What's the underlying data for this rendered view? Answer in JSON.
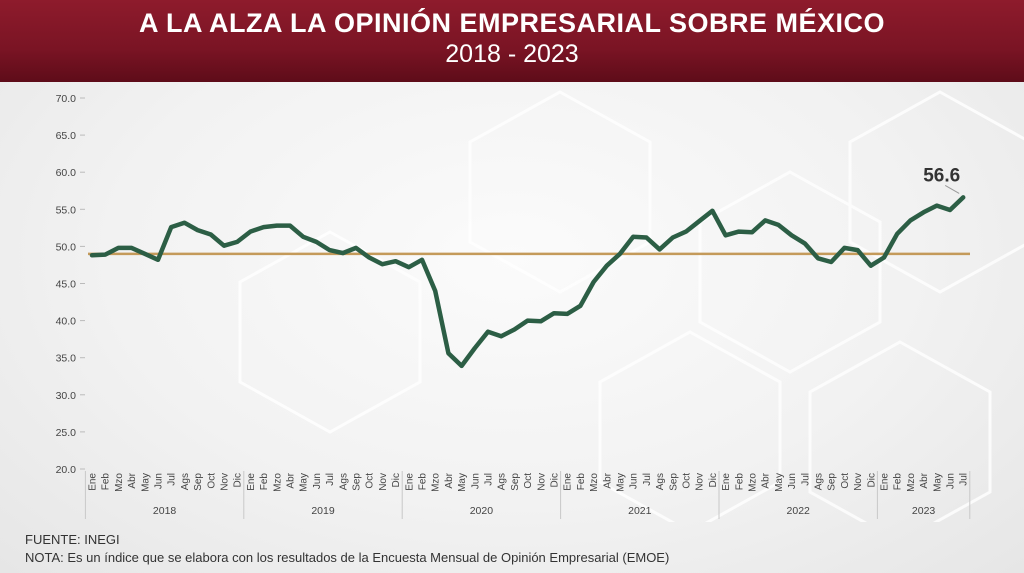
{
  "header": {
    "title": "A LA ALZA LA OPINIÓN EMPRESARIAL SOBRE MÉXICO",
    "subtitle": "2018 - 2023"
  },
  "footer": {
    "source": "FUENTE: INEGI",
    "note": "NOTA: Es un índice que se elabora con los resultados de la Encuesta Mensual de Opinión Empresarial (EMOE)"
  },
  "colors": {
    "line": "#2c5e45",
    "reference": "#c49a5a",
    "header": "#7a1424"
  },
  "chart_data": {
    "type": "line",
    "title": "",
    "ylim": [
      20,
      70
    ],
    "yticks": [
      "20.0",
      "25.0",
      "30.0",
      "35.0",
      "40.0",
      "45.0",
      "50.0",
      "55.0",
      "60.0",
      "65.0",
      "70.0"
    ],
    "month_labels": [
      "Ene",
      "Feb",
      "Mzo",
      "Abr",
      "May",
      "Jun",
      "Jul",
      "Ags",
      "Sep",
      "Oct",
      "Nov",
      "Dic"
    ],
    "last_year_month_labels": [
      "Ene",
      "Feb",
      "Mzo",
      "Abr",
      "May",
      "Jun",
      "Jul"
    ],
    "years": [
      "2018",
      "2019",
      "2020",
      "2021",
      "2022",
      "2023"
    ],
    "reference_value": 49,
    "callout": "56.6",
    "series": [
      {
        "values": [
          48.8,
          48.9,
          49.8,
          49.8,
          49.0,
          48.2,
          52.6,
          53.2,
          52.2,
          51.6,
          50.1,
          50.6,
          52.0,
          52.6,
          52.8,
          52.8,
          51.3,
          50.6,
          49.5,
          49.1,
          49.8,
          48.5,
          47.6,
          48.0,
          47.2,
          48.2,
          44.0,
          35.6,
          33.9,
          36.3,
          38.5,
          37.9,
          38.8,
          40.0,
          39.9,
          41.0,
          40.9,
          42.0,
          45.2,
          47.4,
          49.0,
          51.3,
          51.2,
          49.6,
          51.2,
          52.0,
          53.4,
          54.8,
          51.5,
          52.0,
          51.9,
          53.5,
          52.9,
          51.5,
          50.4,
          48.4,
          47.9,
          49.8,
          49.5,
          47.4,
          48.5,
          51.7,
          53.5,
          54.6,
          55.5,
          54.9,
          56.6
        ]
      }
    ]
  }
}
